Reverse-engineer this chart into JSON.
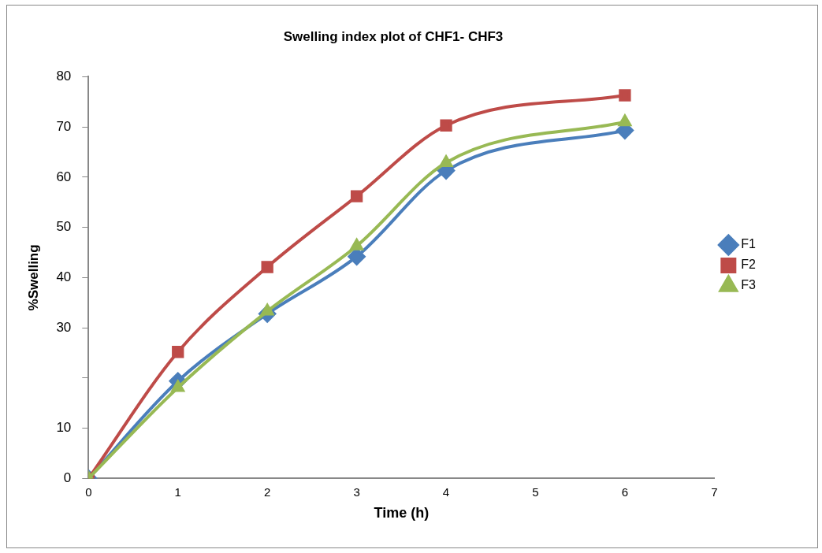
{
  "chart_data": {
    "type": "line",
    "title": "Swelling index plot of CHF1- CHF3",
    "xlabel": "Time (h)",
    "ylabel": "%Swelling",
    "x": [
      0,
      1,
      2,
      3,
      4,
      6
    ],
    "series": [
      {
        "name": "F1",
        "color": "#4a7ebb",
        "marker": "diamond",
        "values": [
          0,
          19.4,
          32.8,
          44.2,
          61.3,
          69.3
        ]
      },
      {
        "name": "F2",
        "color": "#be4b48",
        "marker": "square",
        "values": [
          0,
          25.2,
          42.1,
          56.2,
          70.3,
          76.3
        ]
      },
      {
        "name": "F3",
        "color": "#98b954",
        "marker": "triangle",
        "values": [
          0,
          18.1,
          33.3,
          46.3,
          62.9,
          71.0
        ]
      }
    ],
    "xlim": [
      0,
      7
    ],
    "xticks": [
      0,
      1,
      2,
      3,
      4,
      5,
      6,
      7
    ],
    "ylim": [
      0,
      80
    ],
    "yticks": [
      0,
      10,
      {
        "value": 20,
        "label": null
      },
      30,
      40,
      50,
      60,
      70,
      80
    ],
    "grid": false,
    "legend": "right",
    "line_style": "solid"
  }
}
